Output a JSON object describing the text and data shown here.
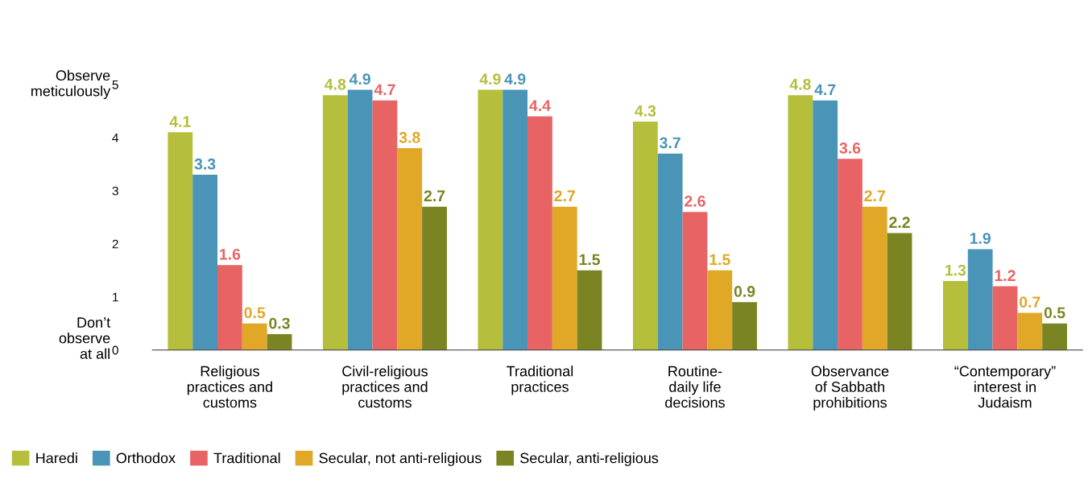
{
  "chart_data": {
    "type": "bar",
    "categories": [
      "Religious\npractices and\ncustoms",
      "Civil-religious\npractices and\ncustoms",
      "Traditional\npractices",
      "Routine-\ndaily life\ndecisions",
      "Observance\nof Sabbath\nprohibitions",
      "“Contemporary”\ninterest in\nJudaism"
    ],
    "series": [
      {
        "name": "Haredi",
        "color": "#b5bf3b",
        "values": [
          4.1,
          4.8,
          4.9,
          4.3,
          4.8,
          1.3
        ]
      },
      {
        "name": "Orthodox",
        "color": "#4a94b7",
        "values": [
          3.3,
          4.9,
          4.9,
          3.7,
          4.7,
          1.9
        ]
      },
      {
        "name": "Traditional",
        "color": "#e86464",
        "values": [
          1.6,
          4.7,
          4.4,
          2.6,
          3.6,
          1.2
        ]
      },
      {
        "name": "Secular, not anti-religious",
        "color": "#e0a826",
        "values": [
          0.5,
          3.8,
          2.7,
          1.5,
          2.7,
          0.7
        ]
      },
      {
        "name": "Secular, anti-religious",
        "color": "#7b8422",
        "values": [
          0.3,
          2.7,
          1.5,
          0.9,
          2.2,
          0.5
        ]
      }
    ],
    "ylim": [
      0,
      5
    ],
    "yticks": [
      0,
      1,
      2,
      3,
      4,
      5
    ],
    "annotations": [
      "Observe\nmeticulously",
      "Don’t\nobserve\nat all"
    ],
    "data_labels": true,
    "grid": false,
    "legend": "bottom"
  }
}
